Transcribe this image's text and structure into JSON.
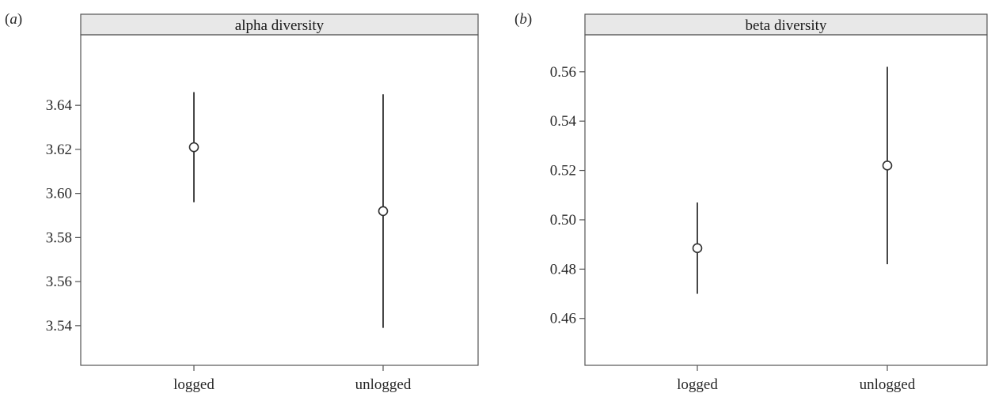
{
  "colors": {
    "strip_fill": "#e8e8e8",
    "line": "#333333",
    "frame": "#555555"
  },
  "panels": [
    {
      "letter_prefix": "(",
      "letter": "a",
      "letter_suffix": ")",
      "strip_label": "alpha diversity"
    },
    {
      "letter_prefix": "(",
      "letter": "b",
      "letter_suffix": ")",
      "strip_label": "beta diversity"
    }
  ],
  "chart_data": [
    {
      "type": "scatter",
      "title": "alpha diversity",
      "categories": [
        "logged",
        "unlogged"
      ],
      "points": [
        {
          "category": "logged",
          "y": 3.621,
          "lower": 3.596,
          "upper": 3.646
        },
        {
          "category": "unlogged",
          "y": 3.592,
          "lower": 3.539,
          "upper": 3.645
        }
      ],
      "ylim": [
        3.522,
        3.672
      ],
      "yticks": [
        3.54,
        3.56,
        3.58,
        3.6,
        3.62,
        3.64
      ],
      "ytick_labels": [
        "3.54",
        "3.56",
        "3.58",
        "3.60",
        "3.62",
        "3.64"
      ],
      "xlabel": "",
      "ylabel": "",
      "grid": false
    },
    {
      "type": "scatter",
      "title": "beta diversity",
      "categories": [
        "logged",
        "unlogged"
      ],
      "points": [
        {
          "category": "logged",
          "y": 0.4885,
          "lower": 0.47,
          "upper": 0.507
        },
        {
          "category": "unlogged",
          "y": 0.522,
          "lower": 0.482,
          "upper": 0.562
        }
      ],
      "ylim": [
        0.441,
        0.575
      ],
      "yticks": [
        0.46,
        0.48,
        0.5,
        0.52,
        0.54,
        0.56
      ],
      "ytick_labels": [
        "0.46",
        "0.48",
        "0.50",
        "0.52",
        "0.54",
        "0.56"
      ],
      "xlabel": "",
      "ylabel": "",
      "grid": false
    }
  ]
}
